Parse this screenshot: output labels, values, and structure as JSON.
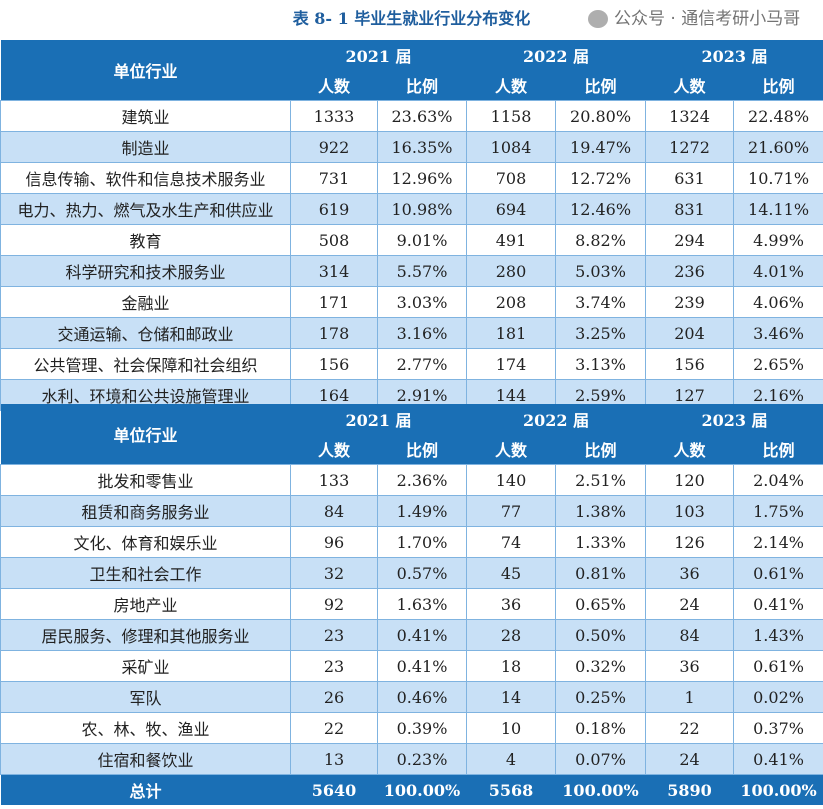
{
  "title": "表 8- 1  毕业生就业行业分布变化",
  "header": {
    "industry": "单位行业",
    "years": [
      "2021 届",
      "2022 届",
      "2023 届"
    ],
    "count": "人数",
    "ratio": "比例"
  },
  "section1": [
    [
      "建筑业",
      "1333",
      "23.63%",
      "1158",
      "20.80%",
      "1324",
      "22.48%"
    ],
    [
      "制造业",
      "922",
      "16.35%",
      "1084",
      "19.47%",
      "1272",
      "21.60%"
    ],
    [
      "信息传输、软件和信息技术服务业",
      "731",
      "12.96%",
      "708",
      "12.72%",
      "631",
      "10.71%"
    ],
    [
      "电力、热力、燃气及水生产和供应业",
      "619",
      "10.98%",
      "694",
      "12.46%",
      "831",
      "14.11%"
    ],
    [
      "教育",
      "508",
      "9.01%",
      "491",
      "8.82%",
      "294",
      "4.99%"
    ],
    [
      "科学研究和技术服务业",
      "314",
      "5.57%",
      "280",
      "5.03%",
      "236",
      "4.01%"
    ],
    [
      "金融业",
      "171",
      "3.03%",
      "208",
      "3.74%",
      "239",
      "4.06%"
    ],
    [
      "交通运输、仓储和邮政业",
      "178",
      "3.16%",
      "181",
      "3.25%",
      "204",
      "3.46%"
    ],
    [
      "公共管理、社会保障和社会组织",
      "156",
      "2.77%",
      "174",
      "3.13%",
      "156",
      "2.65%"
    ],
    [
      "水利、环境和公共设施管理业",
      "164",
      "2.91%",
      "144",
      "2.59%",
      "127",
      "2.16%"
    ]
  ],
  "section2": [
    [
      "批发和零售业",
      "133",
      "2.36%",
      "140",
      "2.51%",
      "120",
      "2.04%"
    ],
    [
      "租赁和商务服务业",
      "84",
      "1.49%",
      "77",
      "1.38%",
      "103",
      "1.75%"
    ],
    [
      "文化、体育和娱乐业",
      "96",
      "1.70%",
      "74",
      "1.33%",
      "126",
      "2.14%"
    ],
    [
      "卫生和社会工作",
      "32",
      "0.57%",
      "45",
      "0.81%",
      "36",
      "0.61%"
    ],
    [
      "房地产业",
      "92",
      "1.63%",
      "36",
      "0.65%",
      "24",
      "0.41%"
    ],
    [
      "居民服务、修理和其他服务业",
      "23",
      "0.41%",
      "28",
      "0.50%",
      "84",
      "1.43%"
    ],
    [
      "采矿业",
      "23",
      "0.41%",
      "18",
      "0.32%",
      "36",
      "0.61%"
    ],
    [
      "军队",
      "26",
      "0.46%",
      "14",
      "0.25%",
      "1",
      "0.02%"
    ],
    [
      "农、林、牧、渔业",
      "22",
      "0.39%",
      "10",
      "0.18%",
      "22",
      "0.37%"
    ],
    [
      "住宿和餐饮业",
      "13",
      "0.23%",
      "4",
      "0.07%",
      "24",
      "0.41%"
    ]
  ],
  "total": [
    "总计",
    "5640",
    "100.00%",
    "5568",
    "100.00%",
    "5890",
    "100.00%"
  ],
  "watermark": "公众号 · 通信考研小马哥"
}
